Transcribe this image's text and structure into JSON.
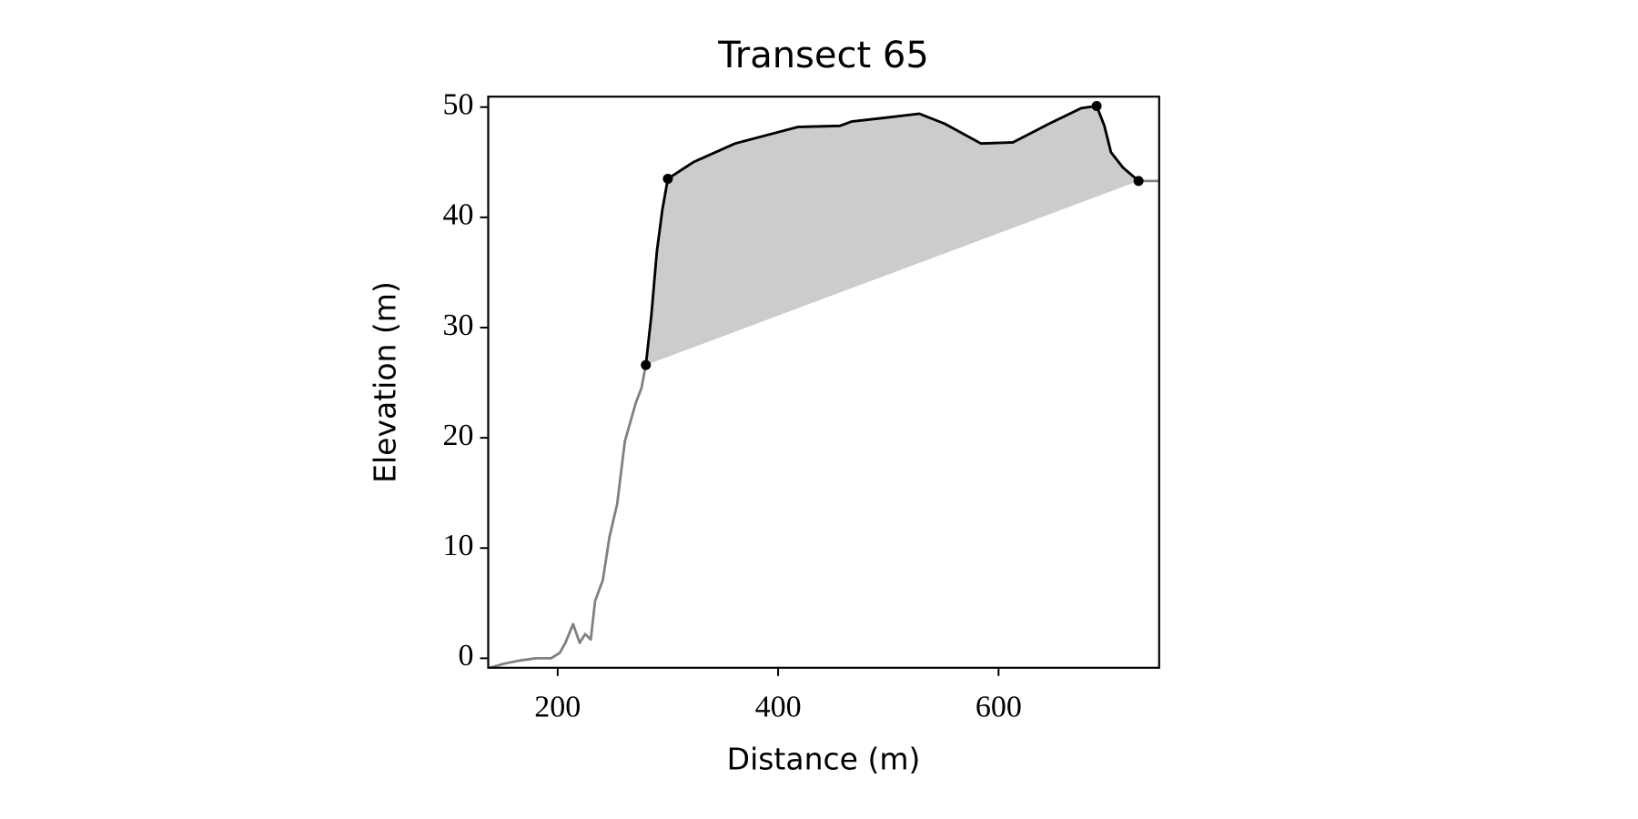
{
  "chart_data": {
    "type": "line",
    "title": "Transect 65",
    "x_label": "Distance (m)",
    "y_label": "Elevation (m)",
    "x": [
      137,
      151,
      166,
      180,
      194,
      202,
      207,
      214,
      220,
      225,
      230,
      234,
      241,
      247,
      254,
      261,
      271,
      276,
      280,
      285,
      290,
      295,
      300,
      323,
      361,
      399,
      418,
      456,
      467,
      494,
      528,
      551,
      584,
      613,
      646,
      675,
      689,
      696,
      702,
      713,
      727,
      737,
      745
    ],
    "series": [
      {
        "color": "#808080",
        "values": [
          -0.9,
          -0.5,
          -0.2,
          0,
          0,
          0.5,
          1.4,
          3.1,
          1.4,
          2.2,
          1.7,
          5.2,
          7.1,
          11,
          14,
          19.7,
          23.2,
          24.5,
          26.6,
          31.1,
          36.9,
          40.7,
          43.5,
          45,
          46.7,
          47.7,
          48.2,
          48.3,
          48.7,
          49,
          49.4,
          48.5,
          46.7,
          46.8,
          48.5,
          49.9,
          50.1,
          48.3,
          45.9,
          44.5,
          43.3,
          43.3,
          43.3
        ]
      },
      {
        "color": "#000000",
        "fill_color": "#cccccc",
        "values": [
          null,
          null,
          null,
          null,
          null,
          null,
          null,
          null,
          null,
          null,
          null,
          null,
          null,
          null,
          null,
          null,
          null,
          null,
          26.6,
          31.1,
          36.9,
          40.7,
          43.5,
          45,
          46.7,
          47.7,
          48.2,
          48.3,
          48.7,
          49,
          49.4,
          48.5,
          46.7,
          46.8,
          48.5,
          49.9,
          50.1,
          48.3,
          45.9,
          44.5,
          43.3,
          null,
          null
        ]
      }
    ],
    "points": {
      "color": "#000000",
      "x": [
        280,
        300,
        689,
        727
      ],
      "values": [
        26.6,
        43.5,
        50.1,
        43.3
      ]
    },
    "xlim": [
      137,
      745.7
    ],
    "ylim": [
      -0.86,
      50.95
    ],
    "xticks": [
      200,
      400,
      600
    ],
    "yticks": [
      0,
      10,
      20,
      30,
      40,
      50
    ]
  }
}
